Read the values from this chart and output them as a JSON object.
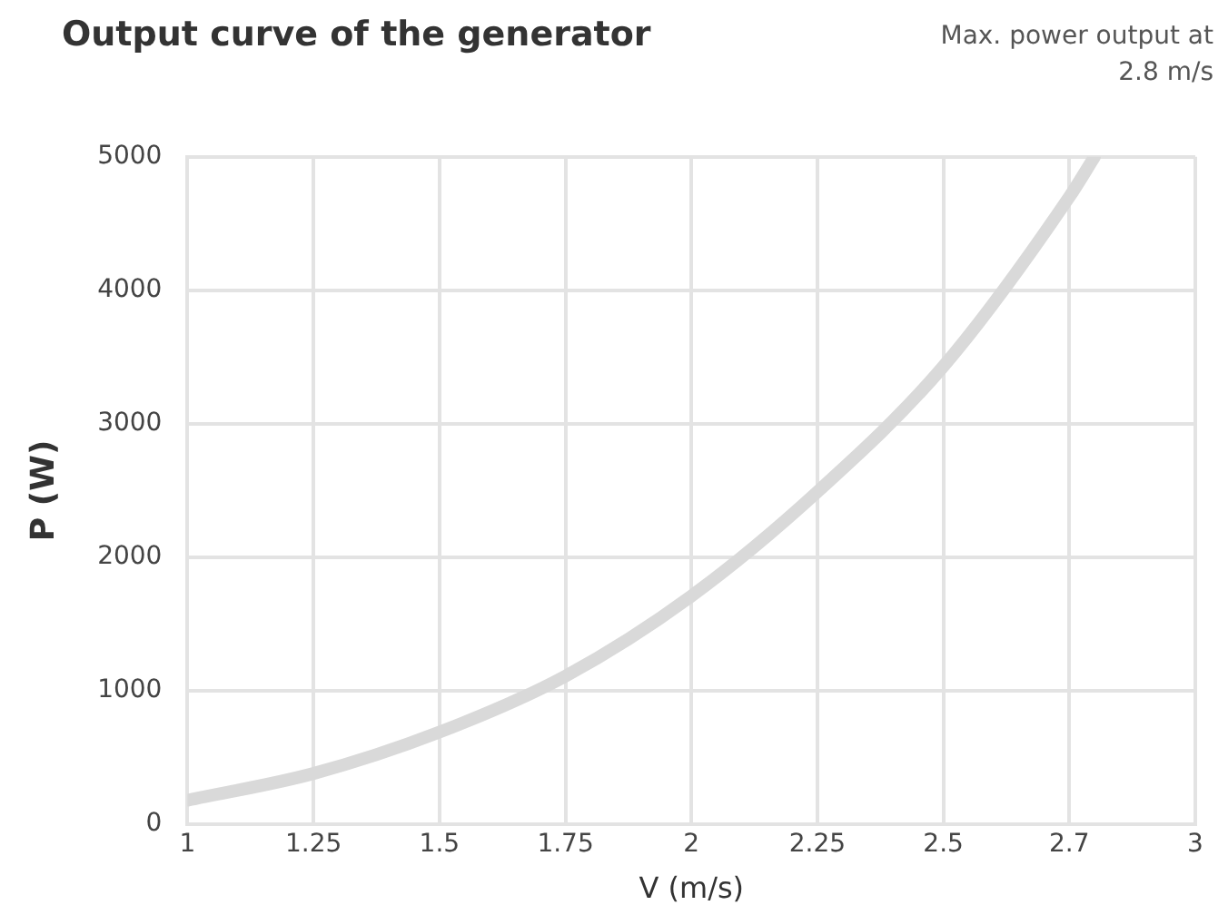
{
  "chart_data": {
    "type": "line",
    "title": "Output curve of the generator",
    "annotations": [
      "Max. power output at 2.8 m/s"
    ],
    "xlabel": "V (m/s)",
    "ylabel": "P (W)",
    "x": [
      1,
      1.25,
      1.5,
      1.75,
      2,
      2.25,
      2.5,
      2.75,
      2.8
    ],
    "series": [
      {
        "color": "#d9d9d9",
        "values": [
          180,
          380,
          690,
          1110,
          1710,
          2490,
          3430,
          4700,
          5000
        ]
      }
    ],
    "xlim": [
      1,
      3
    ],
    "xticks": [
      1,
      1.25,
      1.5,
      1.75,
      2,
      2.25,
      2.5,
      {
        "value": 2.75,
        "label": "2.7"
      },
      3
    ],
    "ylim": [
      0,
      5000
    ],
    "yticks": [
      0,
      1000,
      2000,
      3000,
      4000,
      5000
    ],
    "grid": true,
    "legend": false,
    "marker": "none",
    "line_style": "solid"
  }
}
